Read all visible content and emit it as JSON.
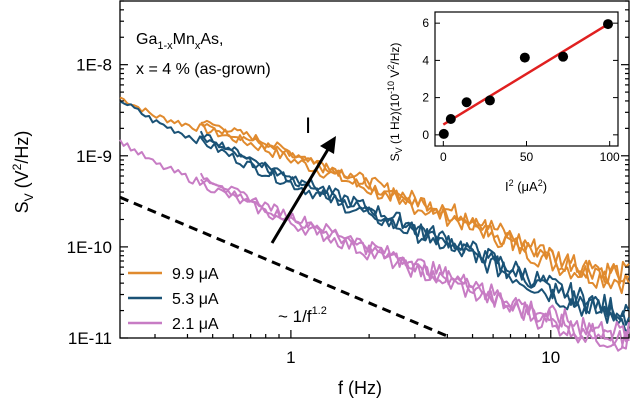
{
  "chart_data": [
    {
      "type": "line",
      "title": "",
      "annotation_material": {
        "base": "Ga",
        "sub1": "1-x",
        "mid": "Mn",
        "sub2": "x",
        "tail": "As,"
      },
      "annotation_composition": "x = 4 % (as-grown)",
      "annotation_arrow": "I",
      "annotation_slope": {
        "prefix": "~ 1/f",
        "exponent": "1.2"
      },
      "xlabel": "f (Hz)",
      "ylabel": {
        "main": "S",
        "sub": "V",
        "rest": " (V",
        "sup": "2",
        "tail": "/Hz)"
      },
      "xscale": "log",
      "yscale": "log",
      "xlim": [
        0.22,
        20
      ],
      "ylim": [
        1e-11,
        5e-08
      ],
      "xticks": [
        {
          "value": 1,
          "label": "1"
        },
        {
          "value": 10,
          "label": "10"
        }
      ],
      "yticks": [
        {
          "value": 1e-11,
          "label": "1E-11"
        },
        {
          "value": 1e-10,
          "label": "1E-10"
        },
        {
          "value": 1e-09,
          "label": "1E-9"
        },
        {
          "value": 1e-08,
          "label": "1E-8"
        }
      ],
      "legend_position": "bottom-left",
      "series": [
        {
          "name": "9.9 μA",
          "color": "#e08a2e",
          "x": [
            0.22,
            0.3,
            0.45,
            0.7,
            1.0,
            1.5,
            2.2,
            3.3,
            5,
            7,
            10,
            14,
            20
          ],
          "y": [
            4.8e-09,
            3e-09,
            2.2e-09,
            1.5e-09,
            1e-09,
            6.5e-10,
            4.2e-10,
            2.8e-10,
            1.9e-10,
            1.2e-10,
            7.5e-11,
            5.5e-11,
            4.5e-11
          ]
        },
        {
          "name": "5.3 μA",
          "color": "#1a5276",
          "x": [
            0.22,
            0.3,
            0.45,
            0.7,
            1.0,
            1.5,
            2.2,
            3.3,
            5,
            7,
            10,
            14,
            20
          ],
          "y": [
            4.5e-09,
            2.6e-09,
            1.6e-09,
            8.5e-10,
            5.5e-10,
            3.4e-10,
            2.2e-10,
            1.4e-10,
            8.5e-11,
            5.5e-11,
            3.4e-11,
            2.3e-11,
            1.7e-11
          ]
        },
        {
          "name": "2.1 μA",
          "color": "#c77cc4",
          "x": [
            0.22,
            0.3,
            0.45,
            0.7,
            1.0,
            1.5,
            2.2,
            3.3,
            5,
            7,
            10,
            14,
            20
          ],
          "y": [
            1.6e-09,
            9e-10,
            5.5e-10,
            3.1e-10,
            2e-10,
            1.3e-10,
            8.5e-11,
            5.5e-11,
            3.5e-11,
            2.4e-11,
            1.6e-11,
            1.2e-11,
            1e-11
          ]
        },
        {
          "name": "",
          "color": "#000000",
          "style": "dashed",
          "x": [
            0.22,
            4.0
          ],
          "y": [
            3.5e-10,
            1.05e-11
          ]
        }
      ]
    },
    {
      "type": "scatter",
      "xlabel": {
        "main": "I",
        "sup": "2",
        "tail": " (μA",
        "sup2": "2",
        "end": ")"
      },
      "ylabel": {
        "main": "S",
        "sub": "V",
        "rest": " (1 Hz)(10",
        "sup": "-10",
        "mid": " V",
        "sup2": "2",
        "tail": "/Hz)"
      },
      "xlim": [
        -5,
        105
      ],
      "ylim": [
        -0.6,
        6.6
      ],
      "xticks": [
        0,
        50,
        100
      ],
      "yticks": [
        0,
        2,
        4,
        6
      ],
      "x": [
        0.3,
        4.5,
        14,
        28,
        49,
        72,
        99
      ],
      "y": [
        0.05,
        0.85,
        1.75,
        1.85,
        4.15,
        4.2,
        5.95
      ],
      "fit_line": {
        "color": "#e02020",
        "x": [
          0,
          100
        ],
        "y": [
          0.55,
          6.0
        ]
      }
    }
  ]
}
